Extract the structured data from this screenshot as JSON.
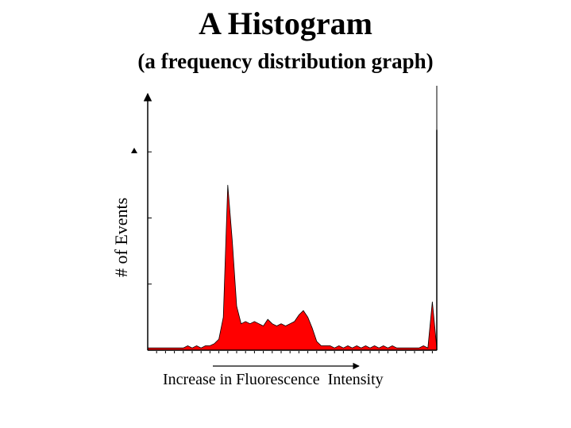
{
  "chart_data": {
    "type": "area",
    "title": "A Histogram",
    "subtitle": "(a frequency distribution graph)",
    "xlabel": "Increase in Fluorescence  Intensity",
    "ylabel": "# of Events",
    "series_color": "#ff0000",
    "axis_color": "#000000",
    "grid": false,
    "xlim": [
      0,
      130
    ],
    "ylim": [
      0,
      120
    ],
    "x": [
      0,
      2,
      4,
      6,
      8,
      10,
      12,
      14,
      16,
      18,
      20,
      22,
      24,
      26,
      28,
      30,
      32,
      34,
      36,
      38,
      40,
      42,
      44,
      46,
      48,
      50,
      52,
      54,
      56,
      58,
      60,
      62,
      64,
      66,
      68,
      70,
      72,
      74,
      76,
      78,
      80,
      82,
      84,
      86,
      88,
      90,
      92,
      94,
      96,
      98,
      100,
      102,
      104,
      106,
      108,
      110,
      112,
      114,
      116,
      118,
      120,
      122,
      124,
      126,
      128,
      130
    ],
    "values": [
      1,
      1,
      1,
      1,
      1,
      1,
      1,
      1,
      1,
      2,
      1,
      2,
      1,
      2,
      2,
      3,
      5,
      15,
      75,
      50,
      20,
      12,
      13,
      12,
      13,
      12,
      11,
      14,
      12,
      11,
      12,
      11,
      12,
      13,
      16,
      18,
      15,
      10,
      4,
      2,
      2,
      2,
      1,
      2,
      1,
      2,
      1,
      2,
      1,
      2,
      1,
      2,
      1,
      2,
      1,
      2,
      1,
      1,
      1,
      1,
      1,
      1,
      2,
      1,
      22,
      1
    ],
    "spike": {
      "x": 130,
      "value": 100
    }
  }
}
